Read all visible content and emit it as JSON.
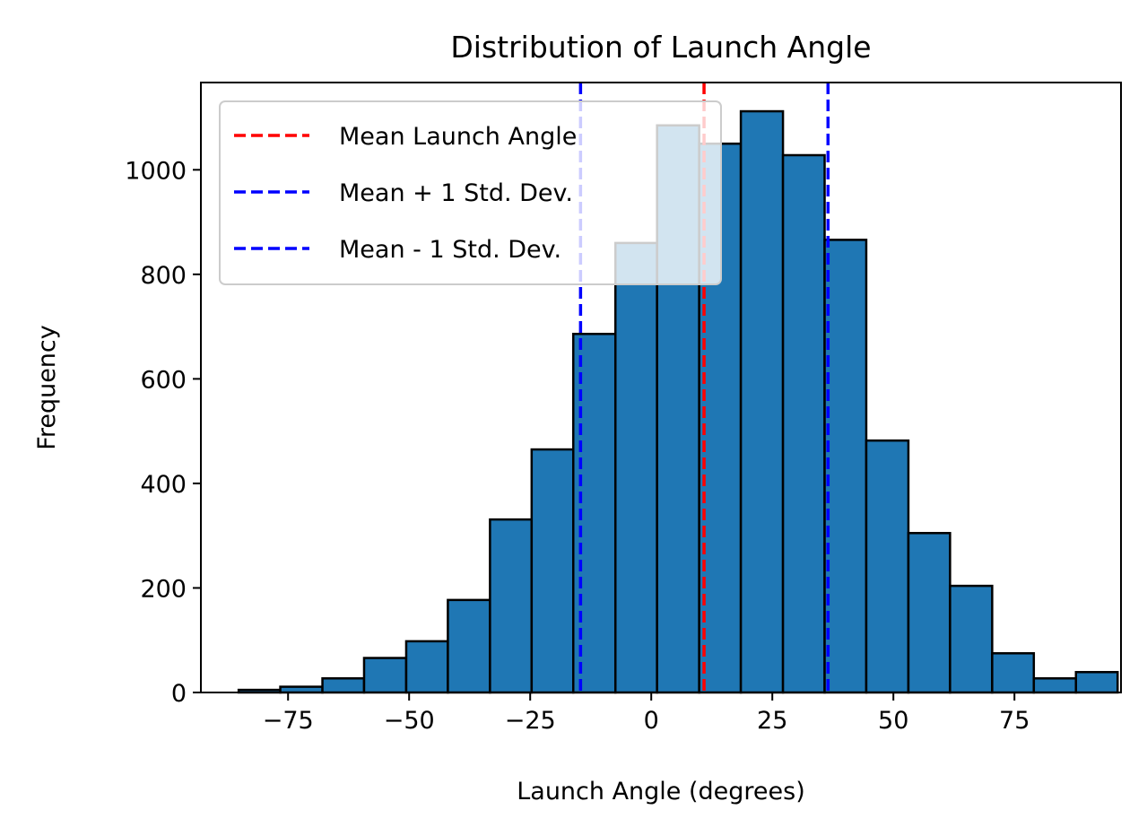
{
  "chart_data": {
    "type": "bar",
    "title": "Distribution of Launch Angle",
    "xlabel": "Launch Angle (degrees)",
    "ylabel": "Frequency",
    "xlim": [
      -93,
      97
    ],
    "ylim": [
      0,
      1167
    ],
    "xticks": [
      -75,
      -50,
      -25,
      0,
      25,
      50,
      75
    ],
    "xtick_labels": [
      "−75",
      "−50",
      "−25",
      "0",
      "25",
      "50",
      "75"
    ],
    "yticks": [
      0,
      200,
      400,
      600,
      800,
      1000
    ],
    "ytick_labels": [
      "0",
      "200",
      "400",
      "600",
      "800",
      "1000"
    ],
    "bar_color": "#1f77b4",
    "bar_edge_color": "#000000",
    "bins": [
      {
        "x0": -85.2,
        "x1": -76.6,
        "count": 5
      },
      {
        "x0": -76.6,
        "x1": -67.9,
        "count": 11
      },
      {
        "x0": -67.9,
        "x1": -59.3,
        "count": 27
      },
      {
        "x0": -59.3,
        "x1": -50.6,
        "count": 66
      },
      {
        "x0": -50.6,
        "x1": -42.0,
        "count": 98
      },
      {
        "x0": -42.0,
        "x1": -33.3,
        "count": 177
      },
      {
        "x0": -33.3,
        "x1": -24.7,
        "count": 331
      },
      {
        "x0": -24.7,
        "x1": -16.1,
        "count": 465
      },
      {
        "x0": -16.1,
        "x1": -7.4,
        "count": 686
      },
      {
        "x0": -7.4,
        "x1": 1.2,
        "count": 860
      },
      {
        "x0": 1.2,
        "x1": 9.9,
        "count": 1085
      },
      {
        "x0": 9.9,
        "x1": 18.5,
        "count": 1050
      },
      {
        "x0": 18.5,
        "x1": 27.2,
        "count": 1112
      },
      {
        "x0": 27.2,
        "x1": 35.8,
        "count": 1028
      },
      {
        "x0": 35.8,
        "x1": 44.4,
        "count": 866
      },
      {
        "x0": 44.4,
        "x1": 53.1,
        "count": 482
      },
      {
        "x0": 53.1,
        "x1": 61.7,
        "count": 305
      },
      {
        "x0": 61.7,
        "x1": 70.4,
        "count": 204
      },
      {
        "x0": 70.4,
        "x1": 79.0,
        "count": 75
      },
      {
        "x0": 79.0,
        "x1": 87.7,
        "count": 27
      },
      {
        "x0": 87.7,
        "x1": 96.3,
        "count": 39
      }
    ],
    "reference_lines": [
      {
        "name": "Mean Launch Angle",
        "x": 10.9,
        "color": "#ff0000",
        "dash": "dashed"
      },
      {
        "name": "Mean + 1 Std. Dev.",
        "x": 36.5,
        "color": "#0000ff",
        "dash": "dashed"
      },
      {
        "name": "Mean - 1 Std. Dev.",
        "x": -14.6,
        "color": "#0000ff",
        "dash": "dashed"
      }
    ],
    "legend": {
      "placement": "upper-left",
      "entries": [
        "Mean Launch Angle",
        "Mean + 1 Std. Dev.",
        "Mean - 1 Std. Dev."
      ]
    },
    "grid": false
  }
}
